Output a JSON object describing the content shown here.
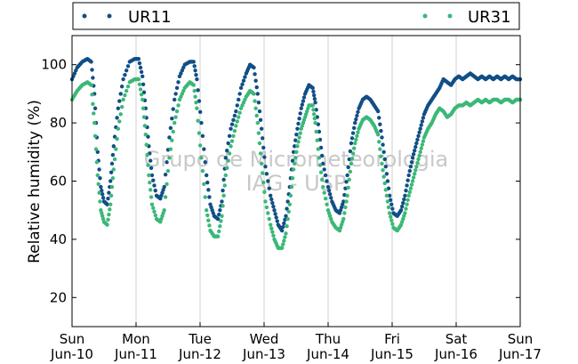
{
  "chart_data": {
    "type": "scatter",
    "title": "",
    "xlabel": "",
    "ylabel": "Relative humidity (%)",
    "ylim": [
      10,
      110
    ],
    "yticks": [
      20,
      40,
      60,
      80,
      100
    ],
    "xlim": [
      0,
      7
    ],
    "grid": "vertical-only",
    "legend_position": "top-above-plot",
    "xticks": [
      {
        "day": "Sun",
        "date": "Jun-10"
      },
      {
        "day": "Mon",
        "date": "Jun-11"
      },
      {
        "day": "Tue",
        "date": "Jun-12"
      },
      {
        "day": "Wed",
        "date": "Jun-13"
      },
      {
        "day": "Thu",
        "date": "Jun-14"
      },
      {
        "day": "Fri",
        "date": "Jun-15"
      },
      {
        "day": "Sat",
        "date": "Jun-16"
      },
      {
        "day": "Sun",
        "date": "Jun-17"
      }
    ],
    "watermark": [
      "Grupo de Micrometeorologia",
      "IAG - USP"
    ],
    "series": [
      {
        "name": "UR11",
        "color": "#114e86",
        "points": [
          [
            0.0,
            95
          ],
          [
            0.08,
            99
          ],
          [
            0.16,
            101
          ],
          [
            0.24,
            102
          ],
          [
            0.3,
            101
          ],
          [
            0.35,
            90
          ],
          [
            0.4,
            70
          ],
          [
            0.45,
            58
          ],
          [
            0.5,
            53
          ],
          [
            0.55,
            52
          ],
          [
            0.6,
            60
          ],
          [
            0.65,
            72
          ],
          [
            0.72,
            85
          ],
          [
            0.8,
            95
          ],
          [
            0.9,
            101
          ],
          [
            0.98,
            102
          ],
          [
            1.04,
            102
          ],
          [
            1.1,
            96
          ],
          [
            1.15,
            85
          ],
          [
            1.2,
            72
          ],
          [
            1.25,
            62
          ],
          [
            1.32,
            55
          ],
          [
            1.38,
            54
          ],
          [
            1.44,
            58
          ],
          [
            1.52,
            75
          ],
          [
            1.6,
            88
          ],
          [
            1.68,
            96
          ],
          [
            1.76,
            100
          ],
          [
            1.84,
            101
          ],
          [
            1.9,
            101
          ],
          [
            1.95,
            95
          ],
          [
            2.02,
            80
          ],
          [
            2.1,
            62
          ],
          [
            2.16,
            52
          ],
          [
            2.22,
            48
          ],
          [
            2.28,
            47
          ],
          [
            2.34,
            53
          ],
          [
            2.4,
            68
          ],
          [
            2.48,
            78
          ],
          [
            2.56,
            84
          ],
          [
            2.64,
            92
          ],
          [
            2.72,
            97
          ],
          [
            2.78,
            100
          ],
          [
            2.84,
            99
          ],
          [
            2.9,
            90
          ],
          [
            2.96,
            78
          ],
          [
            3.02,
            65
          ],
          [
            3.1,
            55
          ],
          [
            3.16,
            50
          ],
          [
            3.22,
            45
          ],
          [
            3.28,
            43
          ],
          [
            3.34,
            48
          ],
          [
            3.4,
            58
          ],
          [
            3.46,
            70
          ],
          [
            3.52,
            78
          ],
          [
            3.58,
            85
          ],
          [
            3.64,
            90
          ],
          [
            3.7,
            93
          ],
          [
            3.76,
            92
          ],
          [
            3.8,
            87
          ],
          [
            3.86,
            77
          ],
          [
            3.92,
            66
          ],
          [
            4.0,
            58
          ],
          [
            4.06,
            53
          ],
          [
            4.12,
            50
          ],
          [
            4.18,
            49
          ],
          [
            4.24,
            53
          ],
          [
            4.3,
            62
          ],
          [
            4.36,
            73
          ],
          [
            4.42,
            80
          ],
          [
            4.48,
            85
          ],
          [
            4.54,
            88
          ],
          [
            4.6,
            89
          ],
          [
            4.66,
            88
          ],
          [
            4.72,
            86
          ],
          [
            4.78,
            84
          ],
          [
            4.84,
            75
          ],
          [
            4.9,
            65
          ],
          [
            4.96,
            55
          ],
          [
            5.02,
            49
          ],
          [
            5.08,
            48
          ],
          [
            5.14,
            50
          ],
          [
            5.2,
            55
          ],
          [
            5.26,
            62
          ],
          [
            5.32,
            68
          ],
          [
            5.38,
            73
          ],
          [
            5.44,
            78
          ],
          [
            5.5,
            83
          ],
          [
            5.56,
            86
          ],
          [
            5.62,
            88
          ],
          [
            5.68,
            90
          ],
          [
            5.74,
            92
          ],
          [
            5.8,
            95
          ],
          [
            5.86,
            94
          ],
          [
            5.92,
            93
          ],
          [
            5.98,
            95
          ],
          [
            6.04,
            96
          ],
          [
            6.1,
            95
          ],
          [
            6.16,
            96
          ],
          [
            6.22,
            97
          ],
          [
            6.28,
            96
          ],
          [
            6.34,
            95
          ],
          [
            6.4,
            96
          ],
          [
            6.46,
            95
          ],
          [
            6.52,
            96
          ],
          [
            6.58,
            95
          ],
          [
            6.64,
            96
          ],
          [
            6.7,
            95
          ],
          [
            6.76,
            96
          ],
          [
            6.82,
            95
          ],
          [
            6.88,
            96
          ],
          [
            6.94,
            95
          ],
          [
            7.0,
            95
          ]
        ]
      },
      {
        "name": "UR31",
        "color": "#3bb877",
        "points": [
          [
            0.0,
            88
          ],
          [
            0.08,
            91
          ],
          [
            0.16,
            93
          ],
          [
            0.24,
            94
          ],
          [
            0.3,
            93
          ],
          [
            0.35,
            80
          ],
          [
            0.4,
            62
          ],
          [
            0.45,
            50
          ],
          [
            0.5,
            46
          ],
          [
            0.55,
            45
          ],
          [
            0.6,
            52
          ],
          [
            0.65,
            64
          ],
          [
            0.72,
            78
          ],
          [
            0.8,
            88
          ],
          [
            0.9,
            94
          ],
          [
            0.98,
            95
          ],
          [
            1.04,
            95
          ],
          [
            1.1,
            88
          ],
          [
            1.15,
            76
          ],
          [
            1.2,
            62
          ],
          [
            1.25,
            52
          ],
          [
            1.32,
            47
          ],
          [
            1.38,
            46
          ],
          [
            1.44,
            50
          ],
          [
            1.52,
            68
          ],
          [
            1.6,
            80
          ],
          [
            1.68,
            88
          ],
          [
            1.76,
            92
          ],
          [
            1.84,
            94
          ],
          [
            1.9,
            93
          ],
          [
            1.95,
            85
          ],
          [
            2.02,
            68
          ],
          [
            2.1,
            50
          ],
          [
            2.16,
            43
          ],
          [
            2.22,
            41
          ],
          [
            2.28,
            41
          ],
          [
            2.34,
            48
          ],
          [
            2.4,
            62
          ],
          [
            2.48,
            72
          ],
          [
            2.56,
            79
          ],
          [
            2.64,
            85
          ],
          [
            2.72,
            89
          ],
          [
            2.78,
            91
          ],
          [
            2.84,
            90
          ],
          [
            2.9,
            80
          ],
          [
            2.96,
            66
          ],
          [
            3.02,
            53
          ],
          [
            3.1,
            45
          ],
          [
            3.16,
            40
          ],
          [
            3.22,
            37
          ],
          [
            3.28,
            37
          ],
          [
            3.34,
            42
          ],
          [
            3.4,
            52
          ],
          [
            3.46,
            64
          ],
          [
            3.52,
            72
          ],
          [
            3.58,
            78
          ],
          [
            3.64,
            82
          ],
          [
            3.7,
            86
          ],
          [
            3.76,
            86
          ],
          [
            3.8,
            80
          ],
          [
            3.86,
            68
          ],
          [
            3.92,
            58
          ],
          [
            4.0,
            50
          ],
          [
            4.06,
            46
          ],
          [
            4.12,
            44
          ],
          [
            4.18,
            43
          ],
          [
            4.24,
            47
          ],
          [
            4.3,
            55
          ],
          [
            4.36,
            66
          ],
          [
            4.42,
            73
          ],
          [
            4.48,
            78
          ],
          [
            4.54,
            81
          ],
          [
            4.6,
            82
          ],
          [
            4.66,
            81
          ],
          [
            4.72,
            79
          ],
          [
            4.78,
            76
          ],
          [
            4.84,
            66
          ],
          [
            4.9,
            57
          ],
          [
            4.96,
            49
          ],
          [
            5.02,
            44
          ],
          [
            5.08,
            43
          ],
          [
            5.14,
            45
          ],
          [
            5.2,
            49
          ],
          [
            5.26,
            55
          ],
          [
            5.32,
            60
          ],
          [
            5.38,
            65
          ],
          [
            5.44,
            70
          ],
          [
            5.5,
            75
          ],
          [
            5.56,
            78
          ],
          [
            5.62,
            80
          ],
          [
            5.68,
            83
          ],
          [
            5.74,
            85
          ],
          [
            5.8,
            84
          ],
          [
            5.86,
            82
          ],
          [
            5.92,
            83
          ],
          [
            5.98,
            85
          ],
          [
            6.04,
            86
          ],
          [
            6.1,
            86
          ],
          [
            6.16,
            87
          ],
          [
            6.22,
            86
          ],
          [
            6.28,
            87
          ],
          [
            6.34,
            88
          ],
          [
            6.4,
            87
          ],
          [
            6.46,
            88
          ],
          [
            6.52,
            87
          ],
          [
            6.58,
            88
          ],
          [
            6.64,
            88
          ],
          [
            6.7,
            87
          ],
          [
            6.76,
            88
          ],
          [
            6.82,
            88
          ],
          [
            6.88,
            87
          ],
          [
            6.94,
            88
          ],
          [
            7.0,
            88
          ]
        ]
      }
    ]
  }
}
